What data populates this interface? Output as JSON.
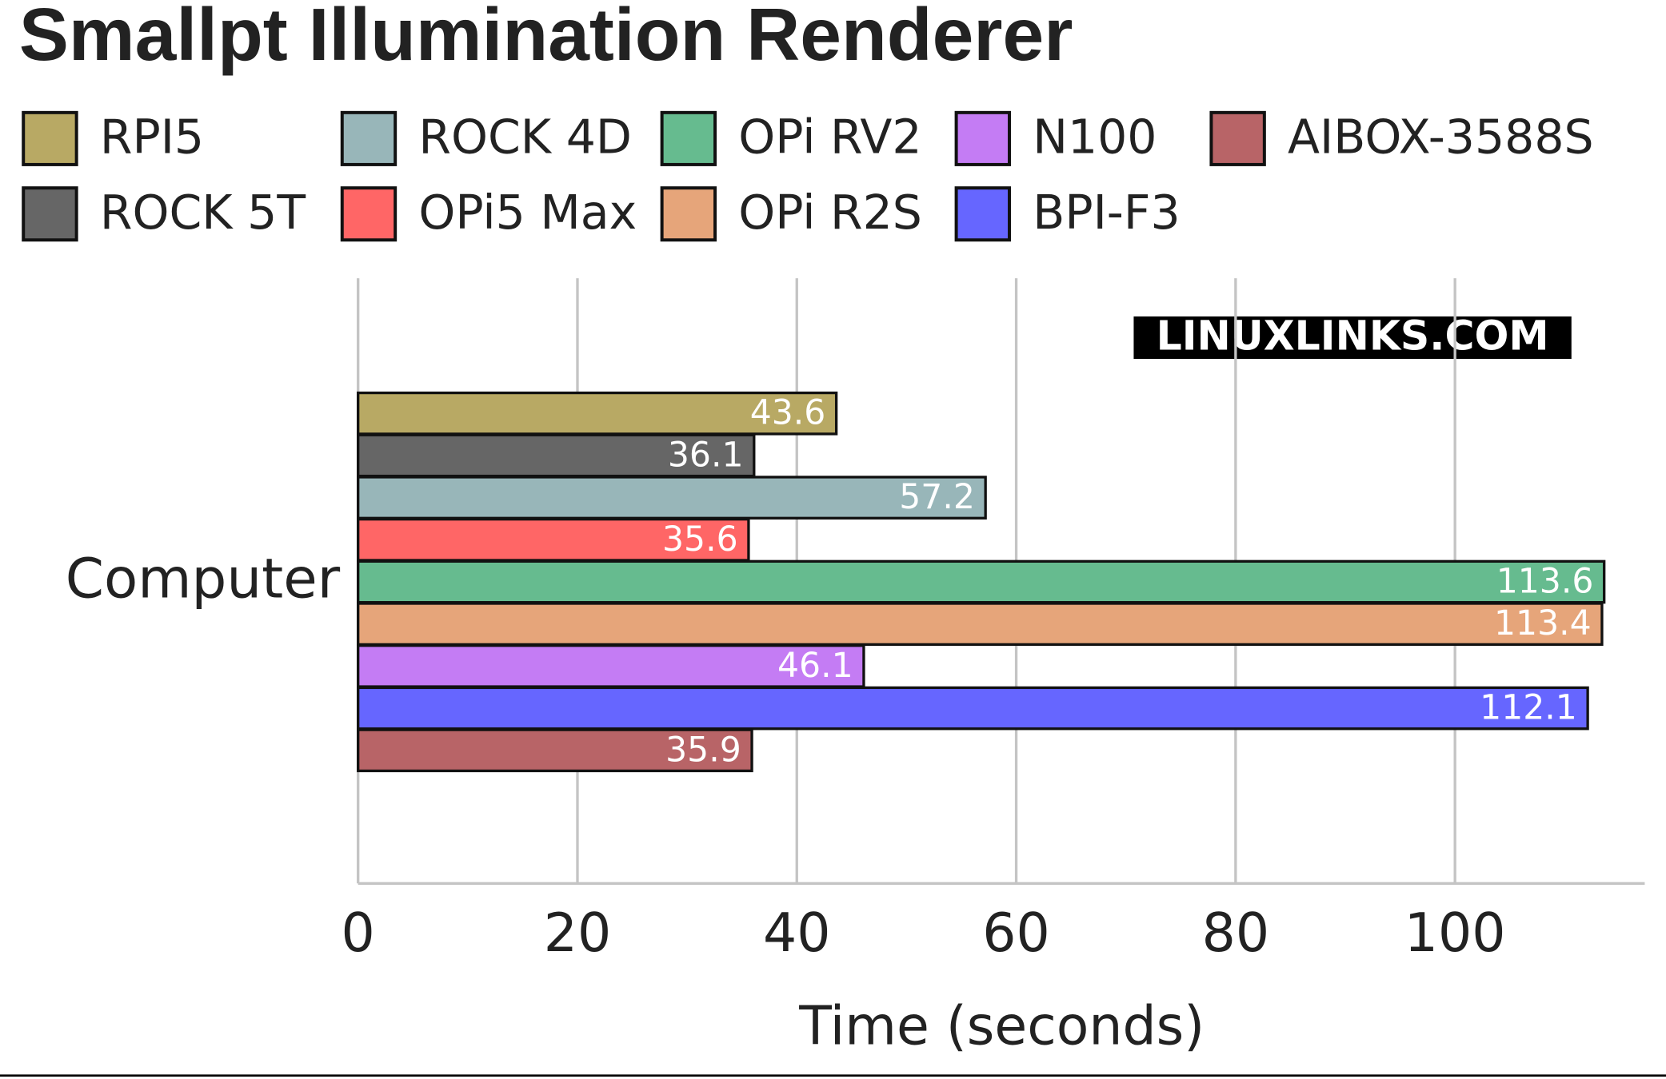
{
  "chart_data": {
    "type": "hbar",
    "title": "Smallpt Illumination Renderer",
    "watermark": "LINUXLINKS.COM",
    "categories": [
      "Computer"
    ],
    "x_label": "Time (seconds)",
    "xlim": [
      0,
      117.3
    ],
    "xticks": [
      0,
      20,
      40,
      60,
      80,
      100
    ],
    "grid": true,
    "legend_rows": 2,
    "series": [
      {
        "name": "RPI5",
        "color": "#b8a964",
        "values": [
          43.6
        ]
      },
      {
        "name": "ROCK 5T",
        "color": "#666666",
        "values": [
          36.1
        ]
      },
      {
        "name": "ROCK 4D",
        "color": "#98b6b9",
        "values": [
          57.2
        ]
      },
      {
        "name": "OPi5 Max",
        "color": "#ff6666",
        "values": [
          35.6
        ]
      },
      {
        "name": "OPi RV2",
        "color": "#66bb8f",
        "values": [
          113.6
        ]
      },
      {
        "name": "OPi R2S",
        "color": "#e6a57a",
        "values": [
          113.4
        ]
      },
      {
        "name": "N100",
        "color": "#c47cf4",
        "values": [
          46.1
        ]
      },
      {
        "name": "BPI-F3",
        "color": "#6666ff",
        "values": [
          112.1
        ]
      },
      {
        "name": "AIBOX-3588S",
        "color": "#b86467",
        "values": [
          35.9
        ]
      }
    ]
  }
}
